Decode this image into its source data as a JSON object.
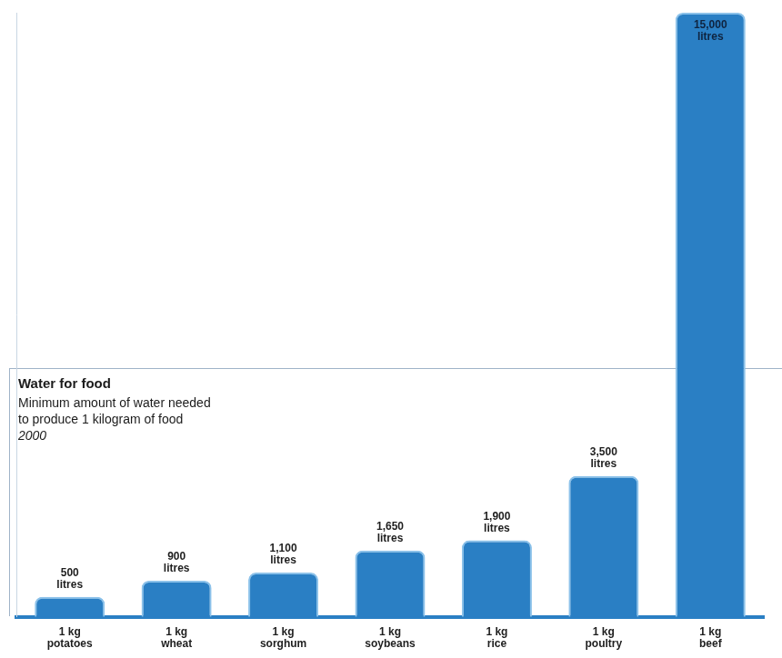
{
  "chart_data": {
    "type": "bar",
    "title": "Water for food",
    "subtitle": "Minimum amount of water needed to produce 1 kilogram of food",
    "year_label": "2000",
    "categories": [
      "1 kg potatoes",
      "1 kg wheat",
      "1 kg sorghum",
      "1 kg soybeans",
      "1 kg rice",
      "1 kg poultry",
      "1 kg beef"
    ],
    "values": [
      500,
      900,
      1100,
      1650,
      1900,
      3500,
      15000
    ],
    "value_labels": [
      "500 litres",
      "900 litres",
      "1,100 litres",
      "1,650 litres",
      "1,900 litres",
      "3,500 litres",
      "15,000 litres"
    ],
    "data_labels": true,
    "color": "#2a7fc4",
    "ylim": [
      0,
      15000
    ],
    "tick_labels": "x",
    "grid": false
  }
}
